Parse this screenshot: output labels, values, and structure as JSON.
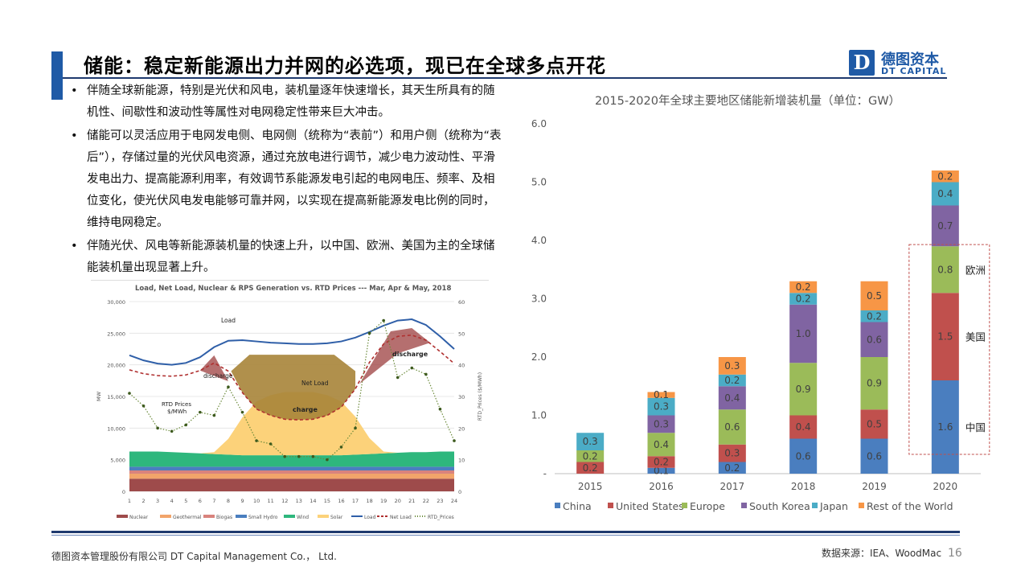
{
  "slide": {
    "title": "储能：稳定新能源出力并网的必选项，现已在全球多点开花",
    "logo_cn": "德图资本",
    "logo_en": "DT CAPITAL",
    "logo_mark": "D",
    "bullets": [
      "伴随全球新能源，特别是光伏和风电，装机量逐年快速增长，其天生所具有的随机性、间歇性和波动性等属性对电网稳定性带来巨大冲击。",
      "储能可以灵活应用于电网发电侧、电网侧（统称为“表前”）和用户侧（统称为“表后”），存储过量的光伏风电资源，通过充放电进行调节，减少电力波动性、平滑发电出力、提高能源利用率，有效调节系能源发电引起的电网电压、频率、及相位变化，使光伏风电发电能够可靠并网，以实现在提高新能源发电比例的同时，维持电网稳定。",
      "伴随光伏、风电等新能源装机量的快速上升，以中国、欧洲、美国为主的全球储能装机量出现显著上升。"
    ],
    "footer_company": "德图资本管理股份有限公司 DT Capital Management Co.， Ltd.",
    "footer_source": "数据来源：IEA、WoodMac",
    "page_number": "16"
  },
  "chart_data": [
    {
      "type": "bar",
      "stacked": true,
      "title": "2015-2020年全球主要地区储能新增装机量（单位：GW）",
      "categories": [
        "2015",
        "2016",
        "2017",
        "2018",
        "2019",
        "2020"
      ],
      "ylim": [
        0,
        6
      ],
      "ytick_labels": [
        "-",
        "1.0",
        "2.0",
        "3.0",
        "4.0",
        "5.0",
        "6.0"
      ],
      "grid": false,
      "legend_position": "bottom",
      "series": [
        {
          "name": "China",
          "color": "#4a7ebf",
          "values": [
            0.0,
            0.1,
            0.2,
            0.6,
            0.6,
            1.6
          ]
        },
        {
          "name": "United States",
          "color": "#c0504d",
          "values": [
            0.2,
            0.2,
            0.3,
            0.4,
            0.5,
            1.5
          ]
        },
        {
          "name": "Europe",
          "color": "#9bbb59",
          "values": [
            0.2,
            0.4,
            0.6,
            0.9,
            0.9,
            0.8
          ]
        },
        {
          "name": "South Korea",
          "color": "#8064a2",
          "values": [
            0.0,
            0.3,
            0.4,
            1.0,
            0.6,
            0.7
          ]
        },
        {
          "name": "Japan",
          "color": "#4bacc6",
          "values": [
            0.3,
            0.3,
            0.2,
            0.2,
            0.2,
            0.4
          ]
        },
        {
          "name": "Rest of the World",
          "color": "#f79646",
          "values": [
            0.0,
            0.1,
            0.3,
            0.2,
            0.5,
            0.2
          ]
        }
      ],
      "data_labels": [
        [
          "",
          "0.2",
          "0.2",
          "",
          "0.3",
          ""
        ],
        [
          "0.1",
          "0.2",
          "0.4",
          "0.3",
          "0.3",
          "0.1"
        ],
        [
          "0.2",
          "0.3",
          "0.6",
          "0.4",
          "0.2",
          "0.3"
        ],
        [
          "0.6",
          "0.4",
          "0.9",
          "1.0",
          "0.2",
          "0.2"
        ],
        [
          "0.6",
          "0.5",
          "0.9",
          "0.6",
          "0.2",
          "0.5"
        ],
        [
          "1.6",
          "1.5",
          "0.8",
          "0.7",
          "0.4",
          "0.2"
        ]
      ],
      "annotations": {
        "highlight_year": "2020",
        "labels": [
          {
            "text": "欧洲",
            "series": "Europe"
          },
          {
            "text": "美国",
            "series": "United States"
          },
          {
            "text": "中国",
            "series": "China"
          }
        ]
      }
    },
    {
      "type": "area",
      "title": "Load, Net Load, Nuclear & RPS Generation vs. RTD Prices --- Mar, Apr & May, 2018",
      "x": [
        1,
        2,
        3,
        4,
        5,
        6,
        7,
        8,
        9,
        10,
        11,
        12,
        13,
        14,
        15,
        16,
        17,
        18,
        19,
        20,
        21,
        22,
        23,
        24
      ],
      "ylabel": "MW",
      "y2label": "RTD_Prices ($/MWh)",
      "ylim": [
        0,
        30000
      ],
      "y2lim": [
        0,
        60
      ],
      "yticks": [
        "0",
        "5,000",
        "10,000",
        "15,000",
        "20,000",
        "25,000",
        "30,000"
      ],
      "y2ticks": [
        "0",
        "10",
        "20",
        "30",
        "40",
        "50",
        "60"
      ],
      "stack_series": [
        {
          "name": "Nuclear",
          "color": "#9e4b4b",
          "values": [
            2000,
            2000,
            2000,
            2000,
            2000,
            2000,
            2000,
            2000,
            2000,
            2000,
            2000,
            2000,
            2000,
            2000,
            2000,
            2000,
            2000,
            2000,
            2000,
            2000,
            2000,
            2000,
            2000,
            2000
          ]
        },
        {
          "name": "Geothermal",
          "color": "#f2a46a",
          "values": [
            800,
            800,
            800,
            800,
            800,
            800,
            800,
            800,
            800,
            800,
            800,
            800,
            800,
            800,
            800,
            800,
            800,
            800,
            800,
            800,
            800,
            800,
            800,
            800
          ]
        },
        {
          "name": "Biogas",
          "color": "#d9837d",
          "values": [
            500,
            500,
            500,
            500,
            500,
            500,
            500,
            500,
            500,
            500,
            500,
            500,
            500,
            500,
            500,
            500,
            500,
            500,
            500,
            500,
            500,
            500,
            500,
            500
          ]
        },
        {
          "name": "Small Hydro",
          "color": "#4a7ebf",
          "values": [
            600,
            600,
            600,
            600,
            600,
            600,
            600,
            600,
            600,
            600,
            600,
            600,
            600,
            600,
            600,
            600,
            600,
            600,
            600,
            600,
            600,
            600,
            600,
            600
          ]
        },
        {
          "name": "Wind",
          "color": "#2eb77d",
          "values": [
            2400,
            2400,
            2400,
            2300,
            2200,
            2100,
            2000,
            1900,
            1800,
            1800,
            1800,
            1800,
            1800,
            1800,
            1800,
            1800,
            1900,
            2000,
            2100,
            2200,
            2300,
            2300,
            2400,
            2400
          ]
        },
        {
          "name": "Solar",
          "color": "#fcd27a",
          "values": [
            0,
            0,
            0,
            0,
            0,
            0,
            300,
            2500,
            6000,
            8500,
            9500,
            10000,
            10000,
            10000,
            9500,
            8500,
            6000,
            2500,
            300,
            0,
            0,
            0,
            0,
            0
          ]
        }
      ],
      "line_series": [
        {
          "name": "Load",
          "color": "#2f5fa8",
          "values": [
            21500,
            20700,
            20200,
            20000,
            20300,
            21200,
            22800,
            23800,
            23900,
            23700,
            23500,
            23400,
            23300,
            23300,
            23400,
            23700,
            24300,
            25200,
            26200,
            27000,
            27200,
            26300,
            24500,
            22500
          ]
        },
        {
          "name": "Net Load",
          "color": "#b03030",
          "dashed": true,
          "values": [
            19200,
            18600,
            18300,
            18200,
            18400,
            19100,
            20300,
            19000,
            15600,
            13000,
            12000,
            11400,
            11300,
            11400,
            12000,
            13300,
            16200,
            20400,
            23300,
            24500,
            24700,
            23900,
            22100,
            20200
          ]
        },
        {
          "name": "RTD_Prices",
          "color": "#6b8a3a",
          "dotted": true,
          "axis": "y2",
          "values": [
            31,
            27,
            20,
            19,
            21,
            25,
            24,
            33,
            25,
            16,
            15,
            11,
            11,
            11,
            10,
            14,
            20,
            50,
            54,
            36,
            39,
            37,
            26,
            16
          ]
        }
      ],
      "annotations": [
        "Load",
        "Net Load",
        "discharge",
        "charge",
        "discharge",
        "RTD Prices $/MWh"
      ]
    }
  ]
}
